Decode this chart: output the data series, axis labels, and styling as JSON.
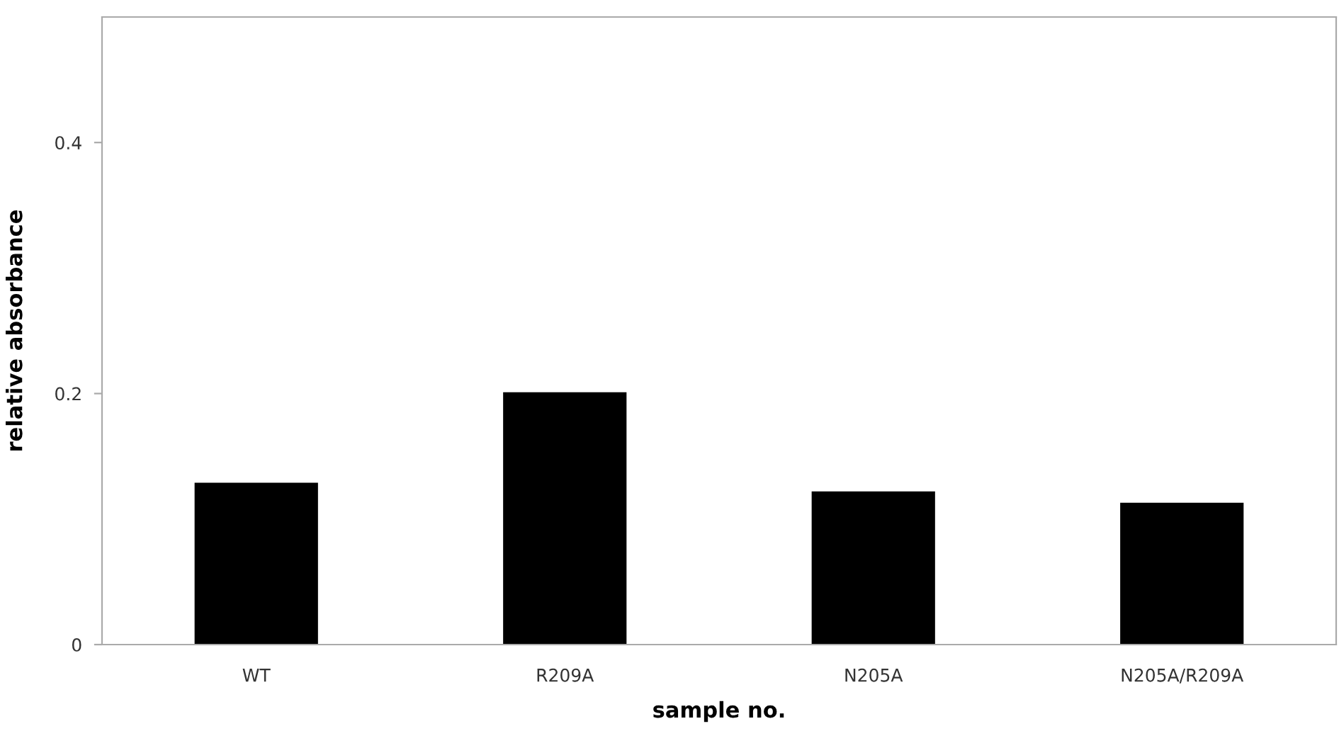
{
  "chart_data": {
    "type": "bar",
    "xlabel": "sample no.",
    "ylabel": "relative absorbance",
    "categories": [
      "WT",
      "R209A",
      "N205A",
      "N205A/R209A"
    ],
    "values": [
      0.129,
      0.201,
      0.122,
      0.113
    ],
    "color": "#000000",
    "ylim": [
      0,
      0.5
    ],
    "yticks": [
      0,
      0.2,
      0.4
    ],
    "grid": false
  }
}
